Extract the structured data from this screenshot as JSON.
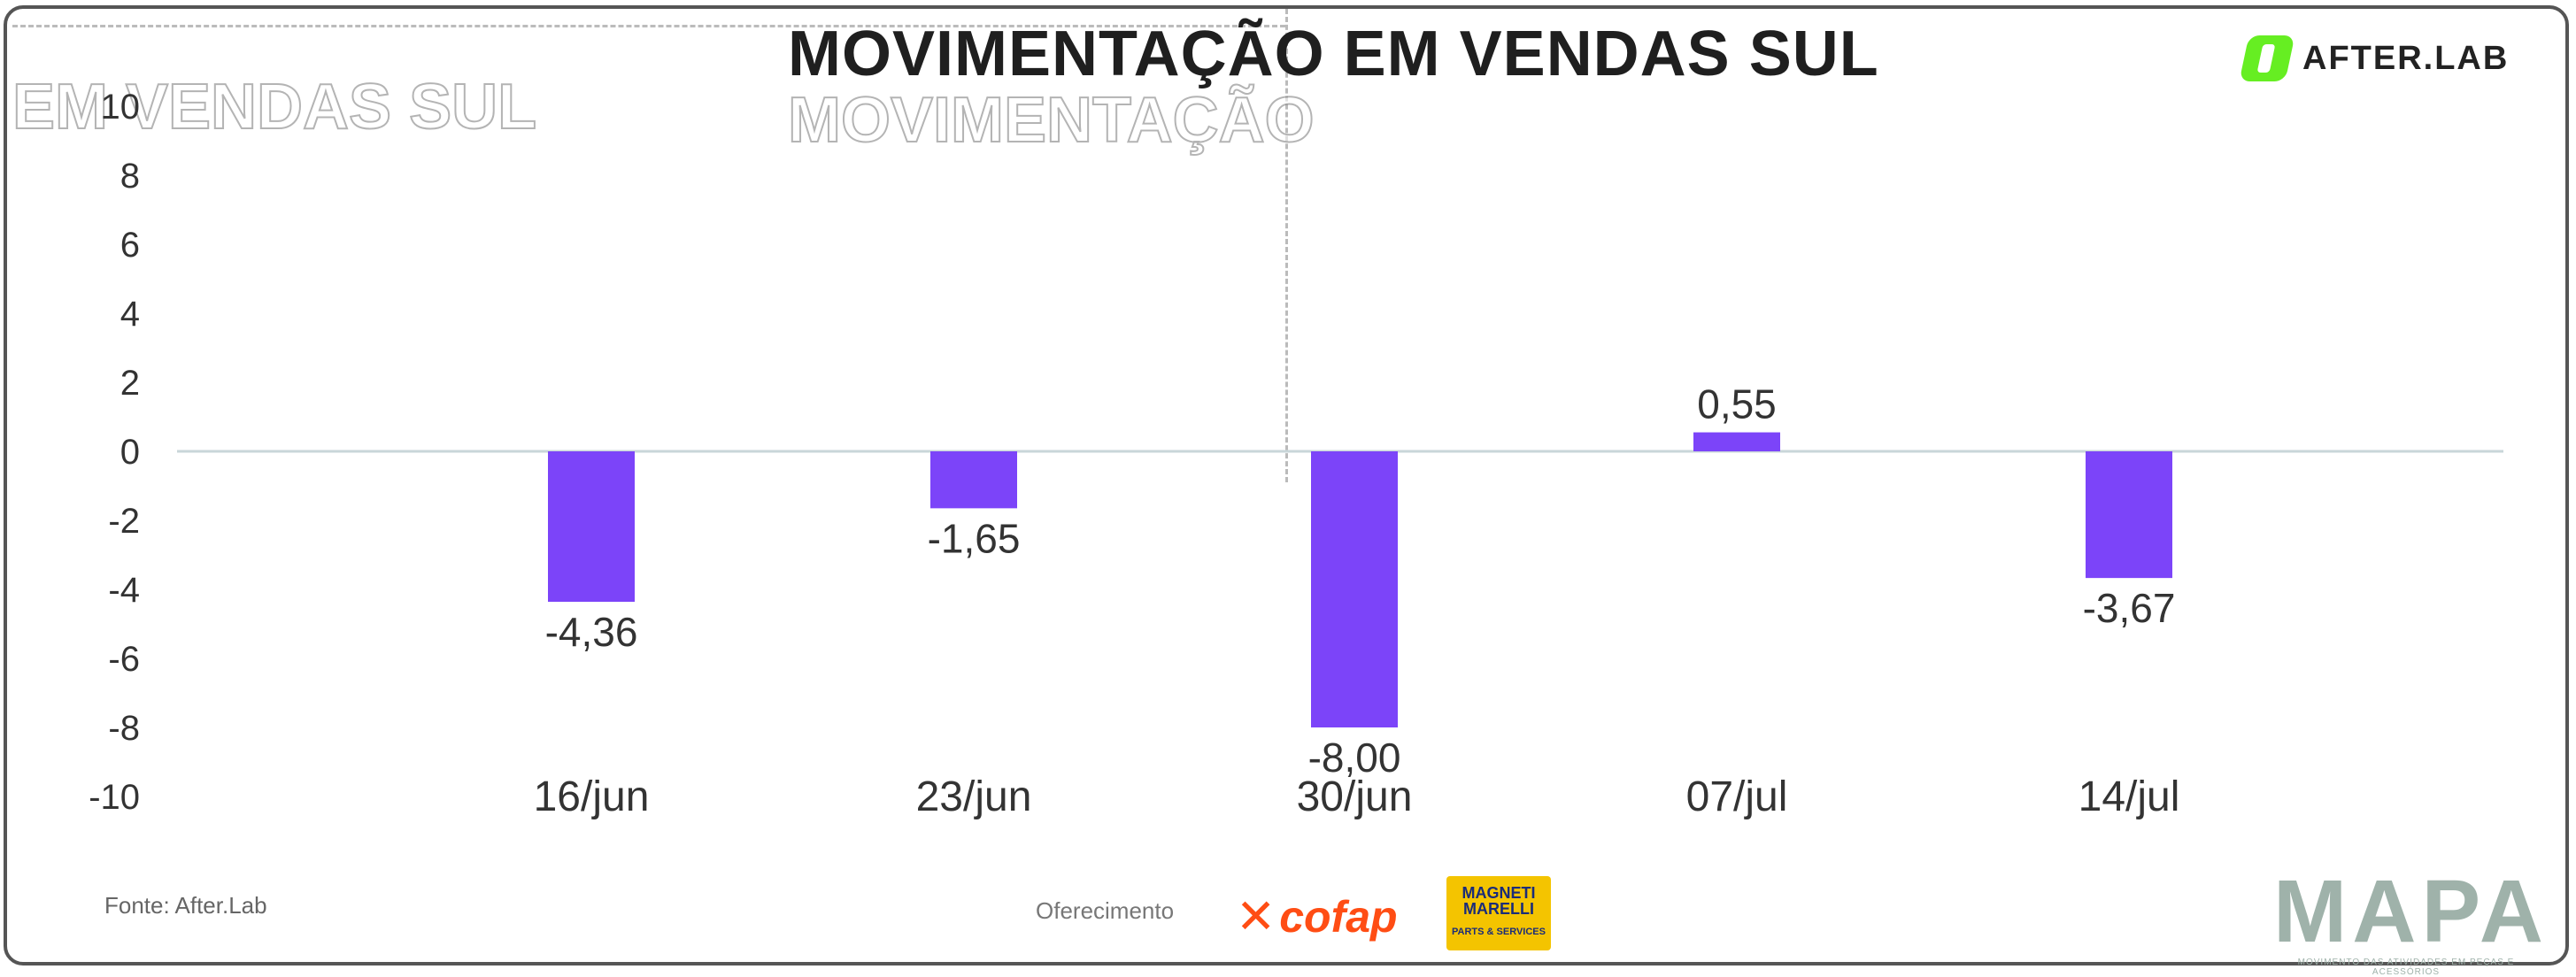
{
  "header": {
    "title": "MOVIMENTAÇÃO EM VENDAS SUL",
    "ghost_left": "EM VENDAS SUL",
    "ghost_right": "MOVIMENTAÇÃO"
  },
  "brand": {
    "name": "AFTER.LAB",
    "color": "#66ee22"
  },
  "chart_data": {
    "type": "bar",
    "categories": [
      "16/jun",
      "23/jun",
      "30/jun",
      "07/jul",
      "14/jul"
    ],
    "values": [
      -4.36,
      -1.65,
      -8.0,
      0.55,
      -3.67
    ],
    "value_labels": [
      "-4,36",
      "-1,65",
      "-8,00",
      "0,55",
      "-3,67"
    ],
    "title": "MOVIMENTAÇÃO EM VENDAS SUL",
    "xlabel": "",
    "ylabel": "",
    "ylim": [
      -10,
      10
    ],
    "yticks": [
      10,
      8,
      6,
      4,
      2,
      0,
      -2,
      -4,
      -6,
      -8,
      -10
    ],
    "ytick_labels": [
      "10",
      "8",
      "6",
      "4",
      "2",
      "0",
      "-2",
      "-4",
      "-6",
      "-8",
      "-10"
    ],
    "grid": false,
    "bar_color": "#7c44f9",
    "zero_line_color": "#c9d6d9"
  },
  "footer": {
    "source": "Fonte: After.Lab",
    "sponsor_label": "Oferecimento",
    "sponsor1": "cofap",
    "sponsor2_line1": "MAGNETI",
    "sponsor2_line2": "MARELLI",
    "sponsor2_tag": "PARTS & SERVICES",
    "mapa": "MAPA",
    "mapa_tagline": "MOVIMENTO DAS ATIVIDADES EM PEÇAS E ACESSÓRIOS"
  }
}
